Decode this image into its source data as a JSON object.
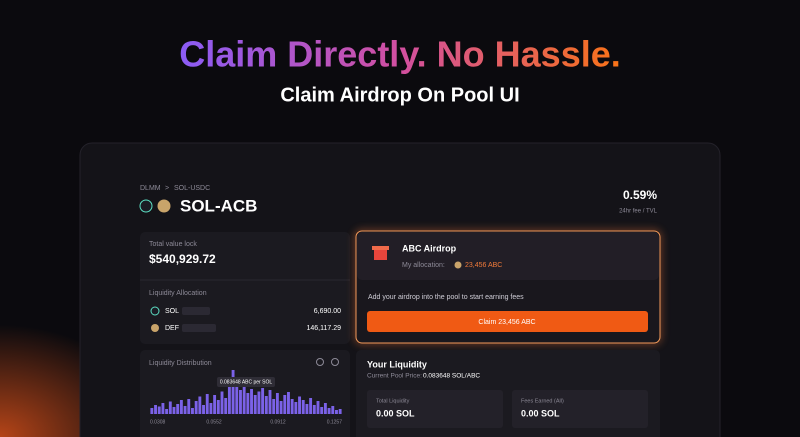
{
  "header": {
    "title": "Claim Directly. No Hassle.",
    "subtitle": "Claim Airdrop On Pool UI"
  },
  "pool": {
    "breadcrumb": [
      "DLMM",
      ">",
      "SOL-USDC"
    ],
    "name": "SOL-ACB",
    "fee_ratio": "0.59%",
    "fee_ratio_label": "24hr fee / TVL"
  },
  "tvl": {
    "label": "Total value lock",
    "value": "$540,929.72"
  },
  "allocation": {
    "label": "Liquidity Allocation",
    "rows": [
      {
        "token": "SOL",
        "amount": "6,690.00"
      },
      {
        "token": "DEF",
        "amount": "146,117.29"
      }
    ]
  },
  "distribution": {
    "label": "Liquidity Distribution",
    "tooltip": "0.083648 ABC per SOL",
    "color": "#7b62e8",
    "ylim": [
      0,
      100
    ],
    "values": [
      12,
      18,
      15,
      22,
      10,
      25,
      14,
      20,
      28,
      16,
      30,
      12,
      26,
      35,
      18,
      40,
      22,
      38,
      28,
      45,
      32,
      55,
      88,
      70,
      48,
      60,
      42,
      50,
      38,
      45,
      52,
      36,
      48,
      30,
      42,
      26,
      38,
      44,
      30,
      24,
      35,
      28,
      20,
      32,
      18,
      26,
      14,
      22,
      12,
      16,
      8,
      10
    ],
    "xlabels": [
      "0.0308",
      "0.0552",
      "0.0912",
      "0.1257"
    ]
  },
  "airdrop": {
    "title": "ABC Airdrop",
    "allocation_label": "My allocation:",
    "allocation": "23,456 ABC",
    "note": "Add your airdrop into the pool to start earning fees",
    "button": "Claim 23,456 ABC"
  },
  "your_liquidity": {
    "title": "Your Liquidity",
    "price_label": "Current Pool Price:",
    "price": "0.083648 SOL/ABC",
    "boxes": [
      {
        "label": "Total Liquidity",
        "value": "0.00 SOL"
      },
      {
        "label": "Fees Earned (All)",
        "value": "0.00 SOL"
      }
    ]
  }
}
